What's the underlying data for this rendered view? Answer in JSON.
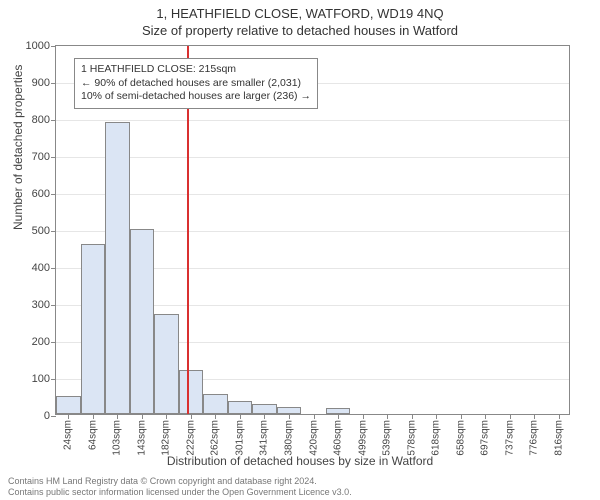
{
  "title": "1, HEATHFIELD CLOSE, WATFORD, WD19 4NQ",
  "subtitle": "Size of property relative to detached houses in Watford",
  "ylabel": "Number of detached properties",
  "xlabel": "Distribution of detached houses by size in Watford",
  "chart": {
    "type": "histogram",
    "bar_fill": "#dbe5f4",
    "bar_border": "#888888",
    "background": "#ffffff",
    "grid_color": "#e6e6e6",
    "axis_color": "#888888",
    "marker_color": "#d93030",
    "ylim": [
      0,
      1000
    ],
    "ytick_step": 100,
    "x_labels": [
      "24sqm",
      "64sqm",
      "103sqm",
      "143sqm",
      "182sqm",
      "222sqm",
      "262sqm",
      "301sqm",
      "341sqm",
      "380sqm",
      "420sqm",
      "460sqm",
      "499sqm",
      "539sqm",
      "578sqm",
      "618sqm",
      "658sqm",
      "697sqm",
      "737sqm",
      "776sqm",
      "816sqm"
    ],
    "values": [
      50,
      460,
      790,
      500,
      270,
      120,
      55,
      35,
      28,
      20,
      0,
      15,
      0,
      0,
      0,
      0,
      0,
      0,
      0,
      0,
      0
    ],
    "marker_position_sqm": 215,
    "annotation": {
      "line1": "1 HEATHFIELD CLOSE: 215sqm",
      "line2": "← 90% of detached houses are smaller (2,031)",
      "line3": "10% of semi-detached houses are larger (236) →"
    }
  },
  "footer": {
    "line1": "Contains HM Land Registry data © Crown copyright and database right 2024.",
    "line2": "Contains public sector information licensed under the Open Government Licence v3.0."
  }
}
